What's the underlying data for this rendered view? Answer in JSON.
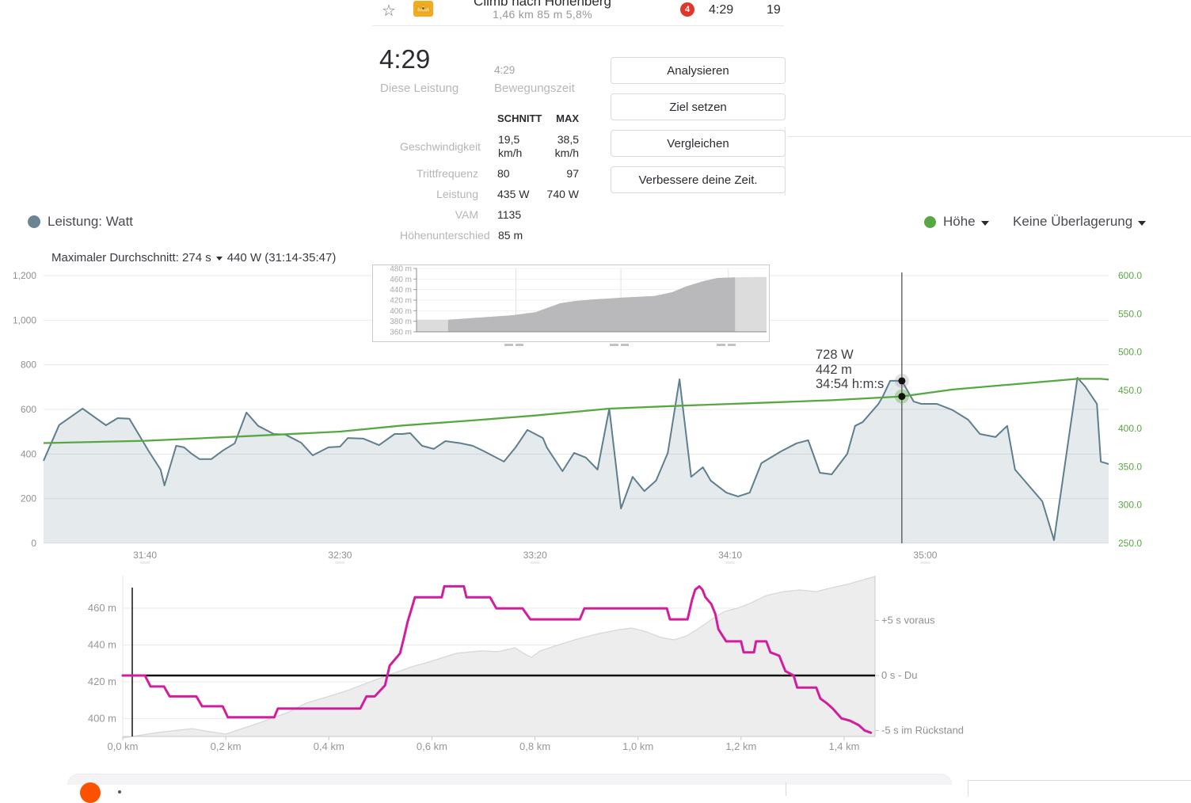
{
  "header": {
    "star_icon": "☆",
    "title": "Climb nach Hohenberg",
    "stats_line": "1,46 km   85 m   5,8%",
    "kom_rank": "4",
    "time": "4:29",
    "clipped_right": "19"
  },
  "effort": {
    "time": "4:29",
    "time_label": "Diese Leistung",
    "moving_time": "4:29",
    "moving_time_label": "Bewegungszeit",
    "table": {
      "col_avg": "SCHNITT",
      "col_max": "MAX",
      "rows": [
        {
          "label": "Geschwindigkeit",
          "avg": "19,5 km/h",
          "max": "38,5 km/h"
        },
        {
          "label": "Trittfrequenz",
          "avg": "80",
          "max": "97"
        },
        {
          "label": "Leistung",
          "avg": "435 W",
          "max": "740 W"
        },
        {
          "label": "VAM",
          "avg": "1135",
          "max": ""
        },
        {
          "label": "Höhenunterschied",
          "avg": "85 m",
          "max": ""
        }
      ]
    },
    "buttons": [
      "Analysieren",
      "Ziel setzen",
      "Vergleichen",
      "Verbessere deine Zeit."
    ]
  },
  "chart_header": {
    "series_legend": "Leistung: Watt",
    "elevation_legend": "Höhe",
    "overlay_select": "Keine Überlagerung",
    "max_avg_prefix": "Maximaler Durchschnitt: 274 s",
    "max_avg_suffix": "440 W (31:14-35:47)"
  },
  "tooltip": {
    "power": "728 W",
    "elevation": "442 m",
    "time": "34:54 h:m:s"
  },
  "colors": {
    "power_line": "#5f7e8e",
    "elevation_line": "#57a843",
    "pace_line": "#d21e9e",
    "accent_orange": "#fc5200",
    "kom_badge": "#e0362c",
    "crown_gold": "#f2aa1e"
  },
  "chart_data": [
    {
      "type": "area",
      "name": "power-and-elevation-vs-time",
      "ylabel_left": "Leistung (W)",
      "ylabel_right": "Höhe (m)",
      "t_range": [
        1874,
        2147
      ],
      "x_ticks": [
        {
          "t": 1900,
          "label": "31:40"
        },
        {
          "t": 1950,
          "label": "32:30"
        },
        {
          "t": 2000,
          "label": "33:20"
        },
        {
          "t": 2050,
          "label": "34:10"
        },
        {
          "t": 2100,
          "label": "35:00"
        }
      ],
      "y_left_ticks": [
        {
          "v": 0,
          "label": "0"
        },
        {
          "v": 200,
          "label": "200"
        },
        {
          "v": 400,
          "label": "400"
        },
        {
          "v": 600,
          "label": "600"
        },
        {
          "v": 800,
          "label": "800"
        },
        {
          "v": 1000,
          "label": "1,000"
        },
        {
          "v": 1200,
          "label": "1,200"
        }
      ],
      "y_right_ticks": [
        {
          "v": 250,
          "label": "250.0"
        },
        {
          "v": 300,
          "label": "300.0"
        },
        {
          "v": 350,
          "label": "350.0"
        },
        {
          "v": 400,
          "label": "400.0"
        },
        {
          "v": 450,
          "label": "450.0"
        },
        {
          "v": 500,
          "label": "500.0"
        },
        {
          "v": 550,
          "label": "550.0"
        },
        {
          "v": 600,
          "label": "600.0"
        }
      ],
      "power": [
        [
          1874,
          370
        ],
        [
          1878,
          530
        ],
        [
          1884,
          604
        ],
        [
          1890,
          529
        ],
        [
          1893,
          561
        ],
        [
          1896,
          558
        ],
        [
          1901,
          412
        ],
        [
          1904,
          330
        ],
        [
          1905,
          259
        ],
        [
          1908,
          437
        ],
        [
          1910,
          430
        ],
        [
          1912,
          401
        ],
        [
          1914,
          377
        ],
        [
          1917,
          377
        ],
        [
          1920,
          416
        ],
        [
          1923,
          448
        ],
        [
          1926,
          586
        ],
        [
          1929,
          526
        ],
        [
          1933,
          490
        ],
        [
          1936,
          487
        ],
        [
          1940,
          451
        ],
        [
          1943,
          394
        ],
        [
          1947,
          430
        ],
        [
          1950,
          433
        ],
        [
          1952,
          472
        ],
        [
          1956,
          469
        ],
        [
          1960,
          440
        ],
        [
          1964,
          490
        ],
        [
          1966,
          490
        ],
        [
          1968,
          494
        ],
        [
          1971,
          437
        ],
        [
          1974,
          423
        ],
        [
          1977,
          458
        ],
        [
          1981,
          448
        ],
        [
          1984,
          437
        ],
        [
          1987,
          412
        ],
        [
          1992,
          366
        ],
        [
          1995,
          430
        ],
        [
          1998,
          508
        ],
        [
          2002,
          472
        ],
        [
          2003,
          430
        ],
        [
          2007,
          323
        ],
        [
          2010,
          405
        ],
        [
          2013,
          384
        ],
        [
          2016,
          330
        ],
        [
          2019,
          604
        ],
        [
          2022,
          156
        ],
        [
          2025,
          298
        ],
        [
          2028,
          234
        ],
        [
          2031,
          281
        ],
        [
          2034,
          405
        ],
        [
          2037,
          735
        ],
        [
          2040,
          298
        ],
        [
          2043,
          341
        ],
        [
          2045,
          281
        ],
        [
          2049,
          227
        ],
        [
          2052,
          210
        ],
        [
          2055,
          227
        ],
        [
          2058,
          359
        ],
        [
          2063,
          412
        ],
        [
          2067,
          448
        ],
        [
          2070,
          462
        ],
        [
          2073,
          316
        ],
        [
          2076,
          309
        ],
        [
          2080,
          401
        ],
        [
          2082,
          526
        ],
        [
          2084,
          544
        ],
        [
          2088,
          625
        ],
        [
          2089,
          654
        ],
        [
          2091,
          728
        ],
        [
          2094,
          728
        ],
        [
          2097,
          636
        ],
        [
          2099,
          625
        ],
        [
          2103,
          625
        ],
        [
          2107,
          597
        ],
        [
          2111,
          554
        ],
        [
          2114,
          490
        ],
        [
          2118,
          476
        ],
        [
          2121,
          526
        ],
        [
          2123,
          330
        ],
        [
          2130,
          188
        ],
        [
          2133,
          14
        ],
        [
          2139,
          742
        ],
        [
          2141,
          703
        ],
        [
          2144,
          625
        ],
        [
          2145,
          366
        ],
        [
          2147,
          355
        ]
      ],
      "elevation": [
        [
          1874,
          381
        ],
        [
          1900,
          384
        ],
        [
          1926,
          390
        ],
        [
          1950,
          396
        ],
        [
          1966,
          404
        ],
        [
          1985,
          411
        ],
        [
          2000,
          417
        ],
        [
          2019,
          426
        ],
        [
          2038,
          430
        ],
        [
          2060,
          434
        ],
        [
          2076,
          437
        ],
        [
          2094,
          442
        ],
        [
          2107,
          451
        ],
        [
          2123,
          458
        ],
        [
          2139,
          465
        ],
        [
          2145,
          465
        ],
        [
          2147,
          464
        ]
      ],
      "cursor": {
        "t": 2094,
        "power_w": 728,
        "elevation_m": 442
      }
    },
    {
      "type": "area",
      "name": "full-ride-elevation-inset",
      "y_ticks": [
        {
          "v": 480,
          "label": "480 m"
        },
        {
          "v": 460,
          "label": "460 m"
        },
        {
          "v": 440,
          "label": "440 m"
        },
        {
          "v": 420,
          "label": "420 m"
        },
        {
          "v": 400,
          "label": "400 m"
        },
        {
          "v": 380,
          "label": "380 m"
        },
        {
          "v": 360,
          "label": "360 m"
        }
      ],
      "profile": [
        [
          0,
          383
        ],
        [
          0.09,
          383
        ],
        [
          0.18,
          387
        ],
        [
          0.27,
          391
        ],
        [
          0.34,
          397
        ],
        [
          0.38,
          407
        ],
        [
          0.41,
          414
        ],
        [
          0.45,
          418
        ],
        [
          0.5,
          421
        ],
        [
          0.59,
          425
        ],
        [
          0.68,
          428
        ],
        [
          0.73,
          435
        ],
        [
          0.77,
          446
        ],
        [
          0.82,
          456
        ],
        [
          0.86,
          462
        ],
        [
          0.91,
          463
        ],
        [
          0.98,
          464
        ],
        [
          1,
          464
        ]
      ],
      "selection": [
        0.09,
        0.91
      ],
      "grid_x": [
        0.284,
        0.584,
        0.891
      ]
    },
    {
      "type": "line",
      "name": "pace-comparison-vs-distance",
      "y_ticks": [
        {
          "v": 460,
          "label": "460 m"
        },
        {
          "v": 440,
          "label": "440 m"
        },
        {
          "v": 420,
          "label": "420 m"
        },
        {
          "v": 400,
          "label": "400 m"
        }
      ],
      "x_ticks": [
        {
          "km": 0,
          "label": "0,0 km"
        },
        {
          "km": 0.2,
          "label": "0,2 km"
        },
        {
          "km": 0.4,
          "label": "0,4 km"
        },
        {
          "km": 0.6,
          "label": "0,6 km"
        },
        {
          "km": 0.8,
          "label": "0,8 km"
        },
        {
          "km": 1.0,
          "label": "1,0 km"
        },
        {
          "km": 1.2,
          "label": "1,2 km"
        },
        {
          "km": 1.4,
          "label": "1,4 km"
        }
      ],
      "annotations": [
        {
          "s": 5,
          "label": "+5 s voraus"
        },
        {
          "s": 0,
          "label": "0 s - Du"
        },
        {
          "s": -5,
          "label": "-5 s im Rückstand"
        }
      ],
      "km_range": [
        0,
        1.46
      ],
      "elevation_profile": [
        [
          0,
          389.5
        ],
        [
          0.069,
          392.5
        ],
        [
          0.135,
          394.6
        ],
        [
          0.169,
          392.9
        ],
        [
          0.2,
          391.6
        ],
        [
          0.269,
          398.1
        ],
        [
          0.323,
          403.7
        ],
        [
          0.355,
          408.4
        ],
        [
          0.407,
          412.7
        ],
        [
          0.436,
          415.3
        ],
        [
          0.484,
          420.4
        ],
        [
          0.518,
          423.9
        ],
        [
          0.561,
          428.2
        ],
        [
          0.599,
          431.2
        ],
        [
          0.647,
          435.5
        ],
        [
          0.696,
          436.8
        ],
        [
          0.728,
          436.4
        ],
        [
          0.761,
          438.5
        ],
        [
          0.778,
          435.5
        ],
        [
          0.793,
          433.3
        ],
        [
          0.81,
          436.8
        ],
        [
          0.842,
          439.8
        ],
        [
          0.882,
          443.2
        ],
        [
          0.924,
          446.2
        ],
        [
          0.964,
          448.4
        ],
        [
          0.988,
          449.2
        ],
        [
          1.013,
          447.5
        ],
        [
          1.045,
          444.1
        ],
        [
          1.07,
          442.8
        ],
        [
          1.094,
          444.9
        ],
        [
          1.119,
          449.2
        ],
        [
          1.143,
          454
        ],
        [
          1.168,
          458.3
        ],
        [
          1.193,
          460
        ],
        [
          1.217,
          462.6
        ],
        [
          1.249,
          466.9
        ],
        [
          1.282,
          469
        ],
        [
          1.314,
          469.9
        ],
        [
          1.346,
          469
        ],
        [
          1.371,
          470.8
        ],
        [
          1.411,
          473.3
        ],
        [
          1.448,
          476.3
        ],
        [
          1.46,
          477.2
        ]
      ],
      "pace_vs_ref": [
        [
          0,
          0
        ],
        [
          0.043,
          0
        ],
        [
          0.054,
          -1
        ],
        [
          0.08,
          -1
        ],
        [
          0.091,
          -1.9
        ],
        [
          0.143,
          -1.9
        ],
        [
          0.154,
          -2.8
        ],
        [
          0.194,
          -2.8
        ],
        [
          0.204,
          -3.8
        ],
        [
          0.294,
          -3.8
        ],
        [
          0.301,
          -3
        ],
        [
          0.461,
          -3
        ],
        [
          0.473,
          -1.9
        ],
        [
          0.489,
          -1.9
        ],
        [
          0.509,
          -0.9
        ],
        [
          0.518,
          0.9
        ],
        [
          0.538,
          2
        ],
        [
          0.546,
          3.5
        ],
        [
          0.553,
          4.9
        ],
        [
          0.562,
          6.3
        ],
        [
          0.567,
          7.1
        ],
        [
          0.619,
          7.1
        ],
        [
          0.624,
          8.1
        ],
        [
          0.662,
          8.1
        ],
        [
          0.667,
          7.1
        ],
        [
          0.713,
          7.1
        ],
        [
          0.725,
          6.1
        ],
        [
          0.776,
          6.1
        ],
        [
          0.791,
          5.1
        ],
        [
          0.887,
          5.1
        ],
        [
          0.896,
          6.1
        ],
        [
          1.056,
          6.1
        ],
        [
          1.062,
          5.1
        ],
        [
          1.096,
          5.1
        ],
        [
          1.105,
          6.9
        ],
        [
          1.111,
          7.8
        ],
        [
          1.119,
          8.1
        ],
        [
          1.125,
          7.8
        ],
        [
          1.131,
          7.1
        ],
        [
          1.142,
          6.5
        ],
        [
          1.15,
          5.6
        ],
        [
          1.156,
          4.2
        ],
        [
          1.171,
          3.1
        ],
        [
          1.2,
          3.1
        ],
        [
          1.205,
          2.1
        ],
        [
          1.225,
          2.1
        ],
        [
          1.229,
          3.1
        ],
        [
          1.249,
          3.1
        ],
        [
          1.257,
          2.1
        ],
        [
          1.274,
          1.8
        ],
        [
          1.286,
          0.4
        ],
        [
          1.302,
          0
        ],
        [
          1.309,
          -1.1
        ],
        [
          1.346,
          -1.1
        ],
        [
          1.354,
          -2.1
        ],
        [
          1.366,
          -2.5
        ],
        [
          1.378,
          -3
        ],
        [
          1.395,
          -3.9
        ],
        [
          1.411,
          -4.1
        ],
        [
          1.428,
          -4.5
        ],
        [
          1.44,
          -5
        ],
        [
          1.452,
          -5.2
        ]
      ]
    }
  ]
}
